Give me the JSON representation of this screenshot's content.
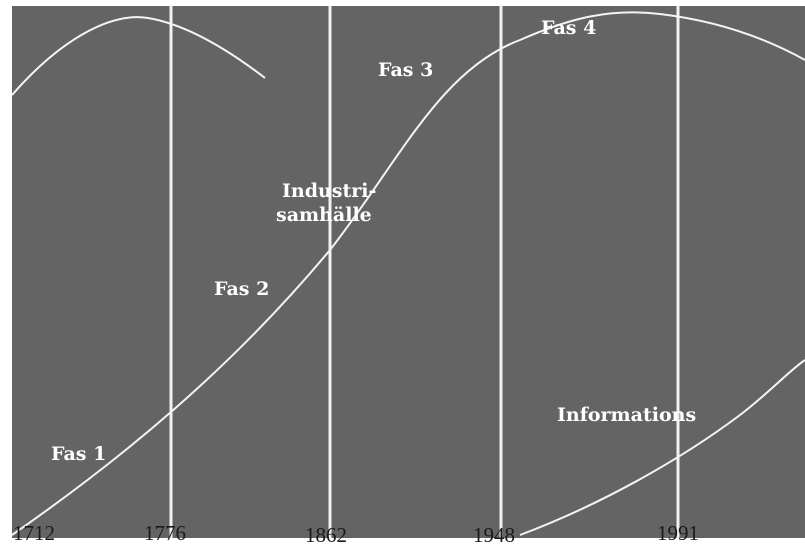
{
  "labels": {
    "fas1": "Fas 1",
    "fas2": "Fas 2",
    "fas3": "Fas 3",
    "fas4": "Fas 4",
    "industri_line1": "Industri-",
    "industri_line2": "samhälle",
    "informations": "Informations"
  },
  "years": [
    "1712",
    "1776",
    "1862",
    "1948",
    "1991"
  ],
  "colors": {
    "background": "#646464",
    "lines": "#f2f2f2",
    "text": "#ffffff",
    "year_text": "#1a1a1a"
  }
}
